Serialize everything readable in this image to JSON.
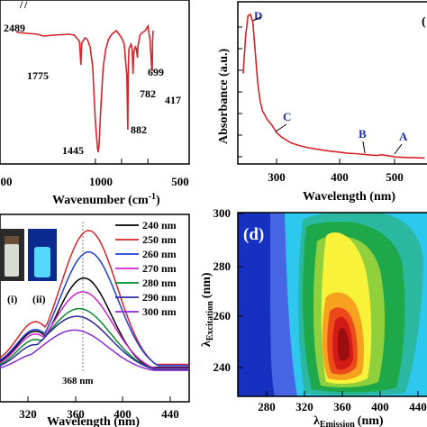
{
  "colors": {
    "red": "#d4242a",
    "blue_label": "#1e2fa8",
    "white": "#ffffff"
  },
  "chart_data": [
    {
      "panel": "a",
      "type": "line",
      "xlabel": "Wavenumber (cm",
      "xlabel_sup": "-1",
      "xlabel_tail": ")",
      "xlim": [
        4000,
        400
      ],
      "x_ticks": [
        500,
        1000,
        1500
      ],
      "x_tick_labels": [
        "1000",
        "500"
      ],
      "x_partial_label": "500",
      "y_ticks_present": true,
      "series": [
        {
          "color": "#d4242a",
          "points": [
            [
              4000,
              18
            ],
            [
              3600,
              20
            ],
            [
              3000,
              22
            ],
            [
              2600,
              24
            ],
            [
              2489,
              26
            ],
            [
              2300,
              25
            ],
            [
              2000,
              24
            ],
            [
              1900,
              25
            ],
            [
              1800,
              32
            ],
            [
              1775,
              58
            ],
            [
              1760,
              34
            ],
            [
              1700,
              28
            ],
            [
              1650,
              30
            ],
            [
              1600,
              38
            ],
            [
              1550,
              60
            ],
            [
              1500,
              120
            ],
            [
              1460,
              150
            ],
            [
              1445,
              155
            ],
            [
              1430,
              148
            ],
            [
              1400,
              110
            ],
            [
              1350,
              60
            ],
            [
              1300,
              40
            ],
            [
              1250,
              30
            ],
            [
              1200,
              25
            ],
            [
              1150,
              22
            ],
            [
              1100,
              20
            ],
            [
              1050,
              24
            ],
            [
              1000,
              28
            ],
            [
              950,
              35
            ],
            [
              900,
              70
            ],
            [
              882,
              130
            ],
            [
              875,
              70
            ],
            [
              860,
              40
            ],
            [
              820,
              35
            ],
            [
              800,
              40
            ],
            [
              782,
              68
            ],
            [
              770,
              45
            ],
            [
              740,
              38
            ],
            [
              720,
              40
            ],
            [
              699,
              50
            ],
            [
              690,
              38
            ],
            [
              650,
              25
            ],
            [
              600,
              22
            ],
            [
              550,
              20
            ],
            [
              500,
              15
            ],
            [
              460,
              30
            ],
            [
              430,
              60
            ],
            [
              417,
              65
            ],
            [
              410,
              30
            ],
            [
              400,
              20
            ]
          ]
        }
      ],
      "annotations": [
        "2489",
        "1775",
        "1445",
        "882",
        "782",
        "699",
        "417"
      ],
      "label_width_marks": [
        "/",
        "/"
      ]
    },
    {
      "panel": "b",
      "type": "line",
      "xlabel": "Wavelength (nm)",
      "ylabel": "Absorbance (a.u.)",
      "xlim": [
        220,
        600
      ],
      "x_ticks": [
        300,
        400,
        500
      ],
      "x_tick_labels": [
        "300",
        "400",
        "500"
      ],
      "series": [
        {
          "color": "#d4242a",
          "points": [
            [
              220,
              0.6
            ],
            [
              225,
              0.85
            ],
            [
              230,
              0.99
            ],
            [
              235,
              1.0
            ],
            [
              240,
              0.95
            ],
            [
              245,
              0.75
            ],
            [
              250,
              0.55
            ],
            [
              255,
              0.42
            ],
            [
              260,
              0.35
            ],
            [
              270,
              0.29
            ],
            [
              280,
              0.25
            ],
            [
              290,
              0.2
            ],
            [
              300,
              0.17
            ],
            [
              320,
              0.13
            ],
            [
              340,
              0.11
            ],
            [
              360,
              0.095
            ],
            [
              380,
              0.085
            ],
            [
              400,
              0.075
            ],
            [
              420,
              0.068
            ],
            [
              440,
              0.06
            ],
            [
              455,
              0.058
            ],
            [
              465,
              0.055
            ],
            [
              480,
              0.05
            ],
            [
              500,
              0.045
            ],
            [
              510,
              0.05
            ],
            [
              520,
              0.045
            ],
            [
              540,
              0.035
            ],
            [
              560,
              0.032
            ],
            [
              580,
              0.03
            ],
            [
              600,
              0.028
            ]
          ]
        }
      ],
      "annotations": [
        {
          "text": "D",
          "x": 235,
          "y": 1.0
        },
        {
          "text": "C",
          "x": 290,
          "y": 0.2
        },
        {
          "text": "B",
          "x": 463,
          "y": 0.056
        },
        {
          "text": "A",
          "x": 508,
          "y": 0.048
        }
      ],
      "corner_label": "("
    },
    {
      "panel": "c",
      "type": "line",
      "xlabel": "Wavelength (nm)",
      "xlim": [
        295,
        455
      ],
      "ylim": [
        0,
        1
      ],
      "x_ticks": [
        320,
        360,
        400,
        440
      ],
      "x_tick_labels": [
        "320",
        "360",
        "400",
        "440"
      ],
      "peak_marker": "368 nm",
      "inset_labels": [
        "(i)",
        "(ii)"
      ],
      "series": [
        {
          "name": "240 nm",
          "color": "#000000",
          "peak": 0.62
        },
        {
          "name": "250 nm",
          "color": "#d4242a",
          "peak": 0.93
        },
        {
          "name": "260 nm",
          "color": "#1f3fd4",
          "peak": 0.79
        },
        {
          "name": "270 nm",
          "color": "#cc22cc",
          "peak": 0.53
        },
        {
          "name": "280 nm",
          "color": "#0a8a2a",
          "peak": 0.42
        },
        {
          "name": "290 nm",
          "color": "#2a2aa0",
          "peak": 0.37
        },
        {
          "name": "300 nm",
          "color": "#8a2ad0",
          "peak": 0.28
        }
      ]
    },
    {
      "panel": "d",
      "type": "heatmap",
      "label": "(d)",
      "xlabel": "λ",
      "xlabel_sub": "Emission",
      "xlabel_tail": "(nm)",
      "ylabel": "λ",
      "ylabel_sub": "Excitation",
      "ylabel_tail": "(nm)",
      "xlim": [
        260,
        460
      ],
      "ylim": [
        230,
        300
      ],
      "x_ticks": [
        280,
        320,
        360,
        400,
        440
      ],
      "x_tick_labels": [
        "280",
        "320",
        "360",
        "400",
        "440"
      ],
      "y_ticks": [
        240,
        260,
        280,
        300
      ],
      "y_tick_labels": [
        "240",
        "260",
        "280",
        "300"
      ],
      "peak": {
        "x": 373,
        "y": 250
      }
    }
  ]
}
